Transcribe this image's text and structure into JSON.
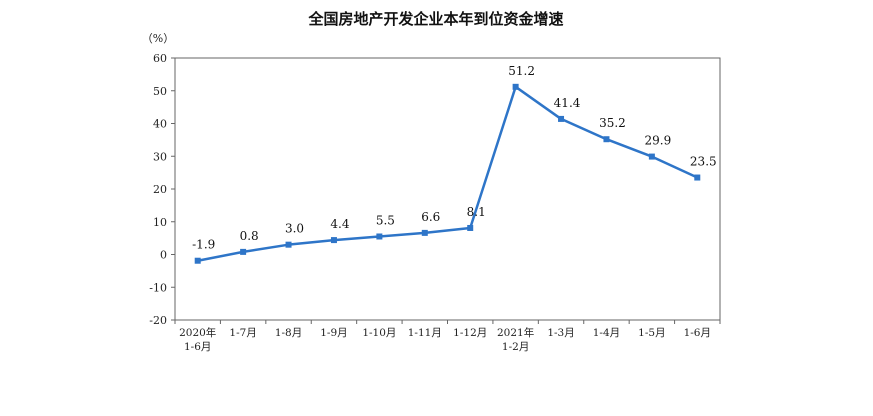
{
  "chart_data": {
    "type": "line",
    "title": "全国房地产开发企业本年到位资金增速",
    "ylabel": "（%）",
    "xlabel": "",
    "ylim": [
      -20,
      60
    ],
    "yticks": [
      -20,
      -10,
      0,
      10,
      20,
      30,
      40,
      50,
      60
    ],
    "grid": false,
    "legend": "none",
    "categories": [
      [
        "2020年",
        "1-6月"
      ],
      [
        "1-7月"
      ],
      [
        "1-8月"
      ],
      [
        "1-9月"
      ],
      [
        "1-10月"
      ],
      [
        "1-11月"
      ],
      [
        "1-12月"
      ],
      [
        "2021年",
        "1-2月"
      ],
      [
        "1-3月"
      ],
      [
        "1-4月"
      ],
      [
        "1-5月"
      ],
      [
        "1-6月"
      ]
    ],
    "series": [
      {
        "values": [
          -1.9,
          0.8,
          3.0,
          4.4,
          5.5,
          6.6,
          8.1,
          51.2,
          41.4,
          35.2,
          29.9,
          23.5
        ],
        "labels": [
          "-1.9",
          "0.8",
          "3.0",
          "4.4",
          "5.5",
          "6.6",
          "8.1",
          "51.2",
          "41.4",
          "35.2",
          "29.9",
          "23.5"
        ],
        "color": "#2e75c8"
      }
    ]
  }
}
